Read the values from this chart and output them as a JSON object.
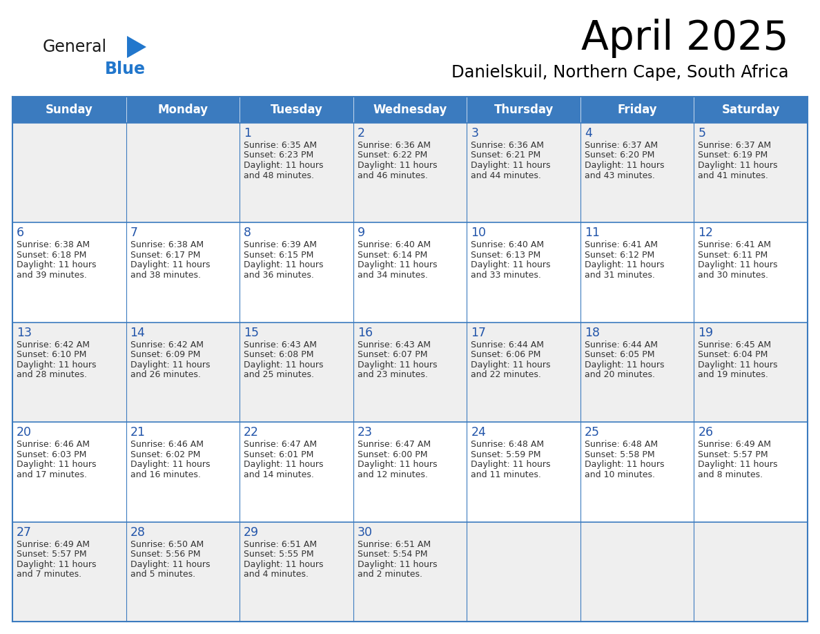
{
  "title": "April 2025",
  "subtitle": "Danielskuil, Northern Cape, South Africa",
  "days_of_week": [
    "Sunday",
    "Monday",
    "Tuesday",
    "Wednesday",
    "Thursday",
    "Friday",
    "Saturday"
  ],
  "header_bg": "#3B7BBF",
  "header_text": "#FFFFFF",
  "cell_bg_odd": "#EFEFEF",
  "cell_bg_even": "#FFFFFF",
  "text_color": "#333333",
  "day_number_color": "#2255AA",
  "border_color": "#3B7BBF",
  "logo_general_color": "#1a1a1a",
  "logo_blue_color": "#2277CC",
  "calendar_data": [
    [
      {
        "day": null,
        "sunrise": null,
        "sunset": null,
        "daylight": null
      },
      {
        "day": null,
        "sunrise": null,
        "sunset": null,
        "daylight": null
      },
      {
        "day": 1,
        "sunrise": "6:35 AM",
        "sunset": "6:23 PM",
        "daylight": "11 hours and 48 minutes."
      },
      {
        "day": 2,
        "sunrise": "6:36 AM",
        "sunset": "6:22 PM",
        "daylight": "11 hours and 46 minutes."
      },
      {
        "day": 3,
        "sunrise": "6:36 AM",
        "sunset": "6:21 PM",
        "daylight": "11 hours and 44 minutes."
      },
      {
        "day": 4,
        "sunrise": "6:37 AM",
        "sunset": "6:20 PM",
        "daylight": "11 hours and 43 minutes."
      },
      {
        "day": 5,
        "sunrise": "6:37 AM",
        "sunset": "6:19 PM",
        "daylight": "11 hours and 41 minutes."
      }
    ],
    [
      {
        "day": 6,
        "sunrise": "6:38 AM",
        "sunset": "6:18 PM",
        "daylight": "11 hours and 39 minutes."
      },
      {
        "day": 7,
        "sunrise": "6:38 AM",
        "sunset": "6:17 PM",
        "daylight": "11 hours and 38 minutes."
      },
      {
        "day": 8,
        "sunrise": "6:39 AM",
        "sunset": "6:15 PM",
        "daylight": "11 hours and 36 minutes."
      },
      {
        "day": 9,
        "sunrise": "6:40 AM",
        "sunset": "6:14 PM",
        "daylight": "11 hours and 34 minutes."
      },
      {
        "day": 10,
        "sunrise": "6:40 AM",
        "sunset": "6:13 PM",
        "daylight": "11 hours and 33 minutes."
      },
      {
        "day": 11,
        "sunrise": "6:41 AM",
        "sunset": "6:12 PM",
        "daylight": "11 hours and 31 minutes."
      },
      {
        "day": 12,
        "sunrise": "6:41 AM",
        "sunset": "6:11 PM",
        "daylight": "11 hours and 30 minutes."
      }
    ],
    [
      {
        "day": 13,
        "sunrise": "6:42 AM",
        "sunset": "6:10 PM",
        "daylight": "11 hours and 28 minutes."
      },
      {
        "day": 14,
        "sunrise": "6:42 AM",
        "sunset": "6:09 PM",
        "daylight": "11 hours and 26 minutes."
      },
      {
        "day": 15,
        "sunrise": "6:43 AM",
        "sunset": "6:08 PM",
        "daylight": "11 hours and 25 minutes."
      },
      {
        "day": 16,
        "sunrise": "6:43 AM",
        "sunset": "6:07 PM",
        "daylight": "11 hours and 23 minutes."
      },
      {
        "day": 17,
        "sunrise": "6:44 AM",
        "sunset": "6:06 PM",
        "daylight": "11 hours and 22 minutes."
      },
      {
        "day": 18,
        "sunrise": "6:44 AM",
        "sunset": "6:05 PM",
        "daylight": "11 hours and 20 minutes."
      },
      {
        "day": 19,
        "sunrise": "6:45 AM",
        "sunset": "6:04 PM",
        "daylight": "11 hours and 19 minutes."
      }
    ],
    [
      {
        "day": 20,
        "sunrise": "6:46 AM",
        "sunset": "6:03 PM",
        "daylight": "11 hours and 17 minutes."
      },
      {
        "day": 21,
        "sunrise": "6:46 AM",
        "sunset": "6:02 PM",
        "daylight": "11 hours and 16 minutes."
      },
      {
        "day": 22,
        "sunrise": "6:47 AM",
        "sunset": "6:01 PM",
        "daylight": "11 hours and 14 minutes."
      },
      {
        "day": 23,
        "sunrise": "6:47 AM",
        "sunset": "6:00 PM",
        "daylight": "11 hours and 12 minutes."
      },
      {
        "day": 24,
        "sunrise": "6:48 AM",
        "sunset": "5:59 PM",
        "daylight": "11 hours and 11 minutes."
      },
      {
        "day": 25,
        "sunrise": "6:48 AM",
        "sunset": "5:58 PM",
        "daylight": "11 hours and 10 minutes."
      },
      {
        "day": 26,
        "sunrise": "6:49 AM",
        "sunset": "5:57 PM",
        "daylight": "11 hours and 8 minutes."
      }
    ],
    [
      {
        "day": 27,
        "sunrise": "6:49 AM",
        "sunset": "5:57 PM",
        "daylight": "11 hours and 7 minutes."
      },
      {
        "day": 28,
        "sunrise": "6:50 AM",
        "sunset": "5:56 PM",
        "daylight": "11 hours and 5 minutes."
      },
      {
        "day": 29,
        "sunrise": "6:51 AM",
        "sunset": "5:55 PM",
        "daylight": "11 hours and 4 minutes."
      },
      {
        "day": 30,
        "sunrise": "6:51 AM",
        "sunset": "5:54 PM",
        "daylight": "11 hours and 2 minutes."
      },
      {
        "day": null,
        "sunrise": null,
        "sunset": null,
        "daylight": null
      },
      {
        "day": null,
        "sunrise": null,
        "sunset": null,
        "daylight": null
      },
      {
        "day": null,
        "sunrise": null,
        "sunset": null,
        "daylight": null
      }
    ]
  ]
}
